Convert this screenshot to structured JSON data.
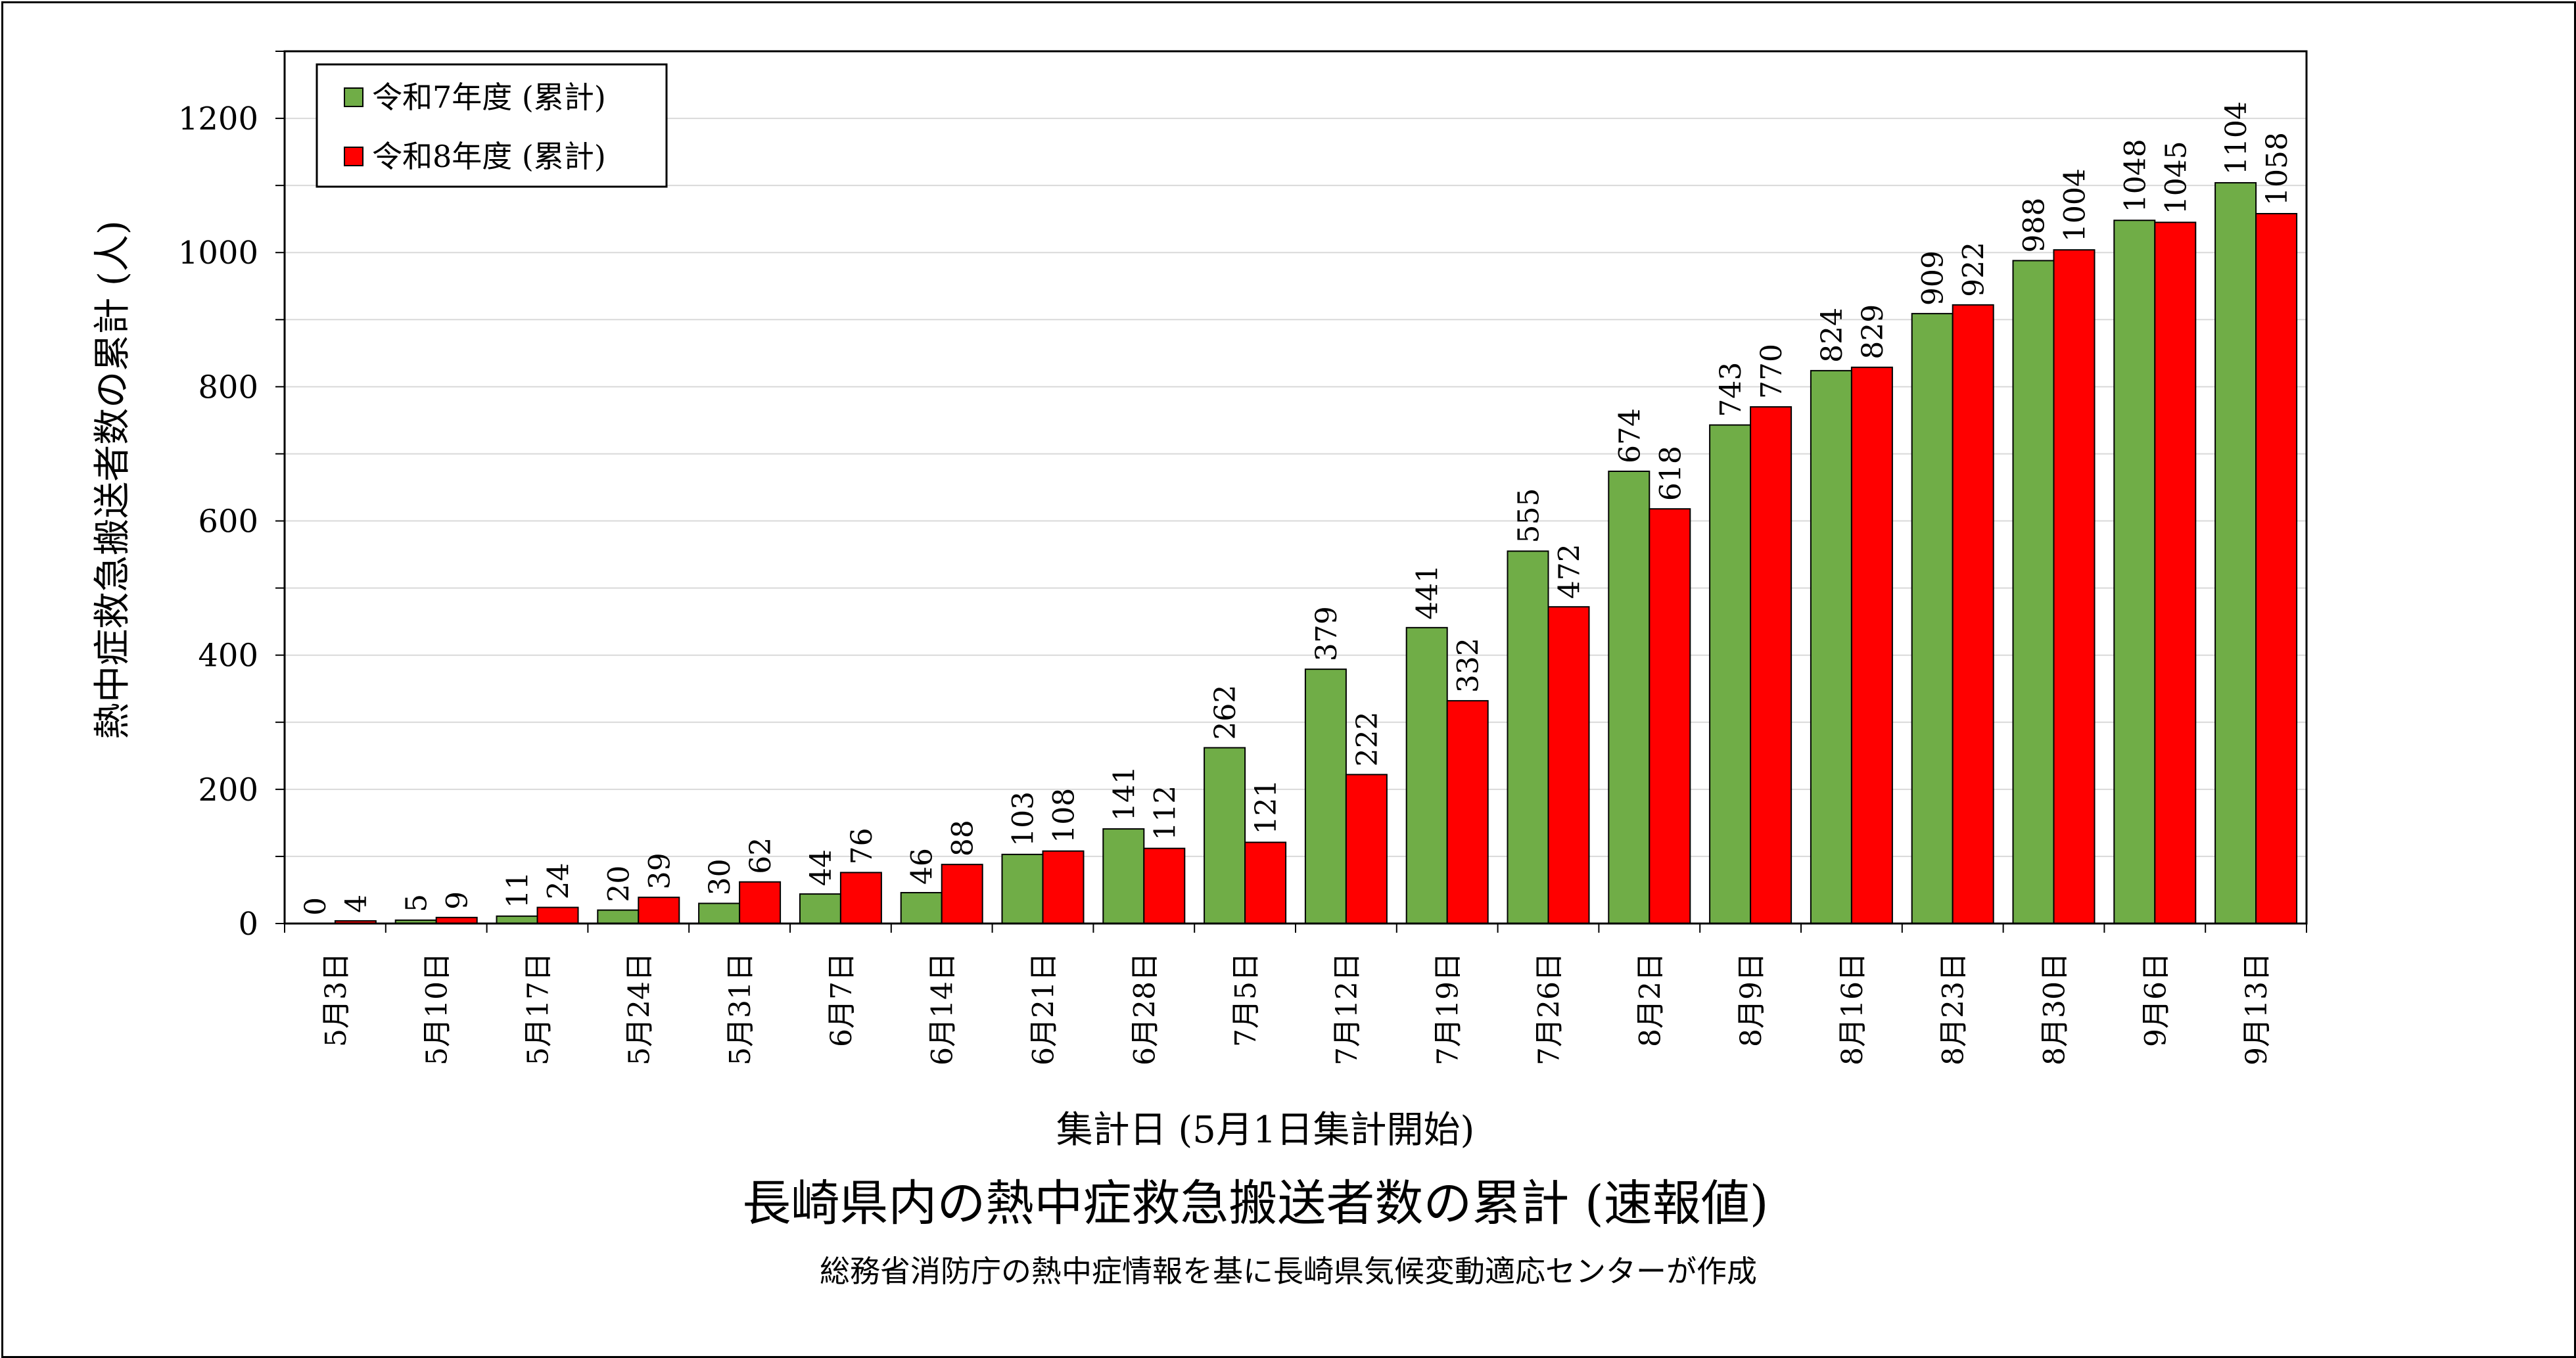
{
  "chart_data": {
    "type": "bar",
    "title": "長崎県内の熱中症救急搬送者数の累計 (速報値)",
    "subtitle": "総務省消防庁の熱中症情報を基に長崎県気候変動適応センターが作成",
    "xlabel": "集計日 (5月1日集計開始)",
    "ylabel": "熱中症救急搬送者数の累計 (人)",
    "ylim": [
      0,
      1300
    ],
    "yticks": [
      "0",
      "200",
      "400",
      "600",
      "800",
      "1000",
      "1200"
    ],
    "grid": true,
    "legend_position": "top-left",
    "categories": [
      "5月3日",
      "5月10日",
      "5月17日",
      "5月24日",
      "5月31日",
      "6月7日",
      "6月14日",
      "6月21日",
      "6月28日",
      "7月5日",
      "7月12日",
      "7月19日",
      "7月26日",
      "8月2日",
      "8月9日",
      "8月16日",
      "8月23日",
      "8月30日",
      "9月6日",
      "9月13日"
    ],
    "series": [
      {
        "name": "令和7年度 (累計)",
        "color": "#70ad47",
        "values": [
          0,
          5,
          11,
          20,
          30,
          44,
          46,
          103,
          141,
          262,
          379,
          441,
          555,
          674,
          743,
          824,
          909,
          988,
          1048,
          1104
        ]
      },
      {
        "name": "令和8年度 (累計)",
        "color": "#ff0000",
        "values": [
          4,
          9,
          24,
          39,
          62,
          76,
          88,
          108,
          112,
          121,
          222,
          332,
          472,
          618,
          770,
          829,
          922,
          1004,
          1045,
          1058
        ]
      }
    ]
  }
}
